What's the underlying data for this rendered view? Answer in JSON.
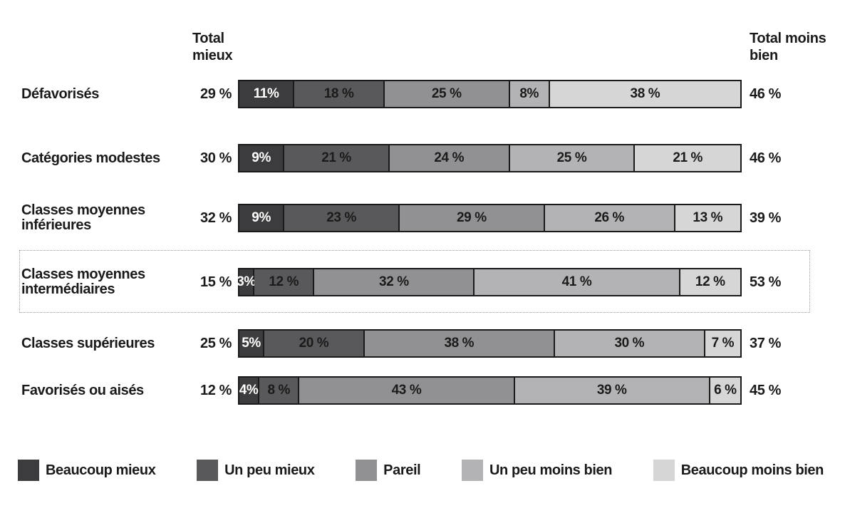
{
  "chart": {
    "left_total_header": "Total mieux",
    "right_total_header": "Total moins bien",
    "colors": {
      "beaucoup_mieux": "#3c3b3d",
      "un_peu_mieux": "#59585a",
      "pareil": "#919193",
      "un_peu_moins_bien": "#b3b3b5",
      "beaucoup_moins_bien": "#d6d6d6",
      "bar_border": "#1a1a1a",
      "highlight_box_border": "#999999"
    },
    "rows": [
      {
        "label": "Défavorisés",
        "total_left": "29 %",
        "total_right": "46 %",
        "highlight": false,
        "segments": [
          {
            "display": "11%",
            "value": 11
          },
          {
            "display": "18 %",
            "value": 18
          },
          {
            "display": "25 %",
            "value": 25
          },
          {
            "display": "8%",
            "value": 8
          },
          {
            "display": "38 %",
            "value": 38
          }
        ]
      },
      {
        "label": "Catégories modestes",
        "total_left": "30 %",
        "total_right": "46 %",
        "highlight": false,
        "segments": [
          {
            "display": "9%",
            "value": 9
          },
          {
            "display": "21 %",
            "value": 21
          },
          {
            "display": "24 %",
            "value": 24
          },
          {
            "display": "25 %",
            "value": 25
          },
          {
            "display": "21 %",
            "value": 21
          }
        ]
      },
      {
        "label": "Classes moyennes inférieures",
        "total_left": "32 %",
        "total_right": "39 %",
        "highlight": false,
        "segments": [
          {
            "display": "9%",
            "value": 9
          },
          {
            "display": "23 %",
            "value": 23
          },
          {
            "display": "29 %",
            "value": 29
          },
          {
            "display": "26 %",
            "value": 26
          },
          {
            "display": "13 %",
            "value": 13
          }
        ]
      },
      {
        "label": "Classes moyennes intermédiaires",
        "total_left": "15 %",
        "total_right": "53 %",
        "highlight": true,
        "segments": [
          {
            "display": "3%",
            "value": 3
          },
          {
            "display": "12 %",
            "value": 12
          },
          {
            "display": "32 %",
            "value": 32
          },
          {
            "display": "41 %",
            "value": 41
          },
          {
            "display": "12 %",
            "value": 12
          }
        ]
      },
      {
        "label": "Classes supérieures",
        "total_left": "25 %",
        "total_right": "37 %",
        "highlight": false,
        "segments": [
          {
            "display": "5%",
            "value": 5
          },
          {
            "display": "20 %",
            "value": 20
          },
          {
            "display": "38 %",
            "value": 38
          },
          {
            "display": "30 %",
            "value": 30
          },
          {
            "display": "7 %",
            "value": 7
          }
        ]
      },
      {
        "label": "Favorisés ou aisés",
        "total_left": "12 %",
        "total_right": "45 %",
        "highlight": false,
        "segments": [
          {
            "display": "4%",
            "value": 4
          },
          {
            "display": "8 %",
            "value": 8
          },
          {
            "display": "43 %",
            "value": 43
          },
          {
            "display": "39 %",
            "value": 39
          },
          {
            "display": "6 %",
            "value": 6
          }
        ]
      }
    ],
    "legend": [
      {
        "label": "Beaucoup mieux",
        "color": "#3c3b3d"
      },
      {
        "label": "Un peu mieux",
        "color": "#59585a"
      },
      {
        "label": "Pareil",
        "color": "#919193"
      },
      {
        "label": "Un peu moins bien",
        "color": "#b3b3b5"
      },
      {
        "label": "Beaucoup moins bien",
        "color": "#d6d6d6"
      }
    ]
  },
  "chart_data": {
    "type": "bar",
    "orientation": "horizontal",
    "stacked": true,
    "unit": "%",
    "xlim": [
      0,
      100
    ],
    "categories": [
      "Défavorisés",
      "Catégories modestes",
      "Classes moyennes inférieures",
      "Classes moyennes intermédiaires",
      "Classes supérieures",
      "Favorisés ou aisés"
    ],
    "series": [
      {
        "name": "Beaucoup mieux",
        "color": "#3c3b3d",
        "values": [
          11,
          9,
          9,
          3,
          5,
          4
        ]
      },
      {
        "name": "Un peu mieux",
        "color": "#59585a",
        "values": [
          18,
          21,
          23,
          12,
          20,
          8
        ]
      },
      {
        "name": "Pareil",
        "color": "#919193",
        "values": [
          25,
          24,
          29,
          32,
          38,
          43
        ]
      },
      {
        "name": "Un peu moins bien",
        "color": "#b3b3b5",
        "values": [
          8,
          25,
          26,
          41,
          30,
          39
        ]
      },
      {
        "name": "Beaucoup moins bien",
        "color": "#d6d6d6",
        "values": [
          38,
          21,
          13,
          12,
          7,
          6
        ]
      }
    ],
    "total_mieux_column": {
      "header": "Total mieux",
      "values": [
        29,
        30,
        32,
        15,
        25,
        12
      ]
    },
    "total_moins_bien_column": {
      "header": "Total moins bien",
      "values": [
        46,
        46,
        39,
        53,
        37,
        45
      ]
    },
    "highlighted_category": "Classes moyennes intermédiaires",
    "legend_position": "bottom",
    "grid": false
  }
}
